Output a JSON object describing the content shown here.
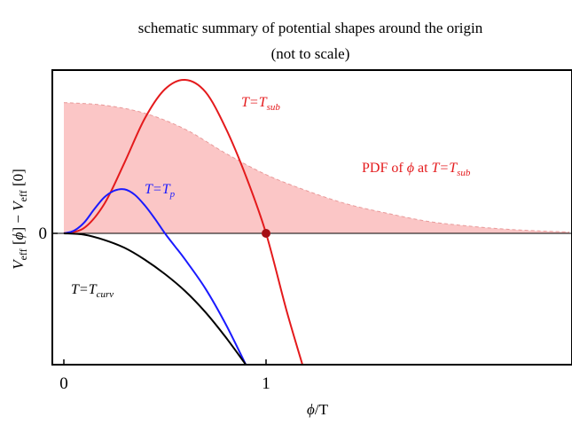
{
  "chart_data": {
    "type": "line",
    "title": "schematic summary of potential shapes around the origin",
    "subtitle": "(not to scale)",
    "xlabel": {
      "sym": "ϕ",
      "rest": "/T"
    },
    "ylabel": {
      "parts": [
        "V",
        "eff",
        " [",
        "ϕ",
        "]",
        " − ",
        "V",
        "eff",
        " [0]"
      ]
    },
    "xlim": [
      0,
      2.5
    ],
    "ylim": [
      -1.0,
      1.15
    ],
    "x_ticks": [
      {
        "value": 0,
        "label": "0"
      },
      {
        "value": 1,
        "label": "1"
      }
    ],
    "y_ticks": [
      {
        "value": 0,
        "label": "0"
      }
    ],
    "colors": {
      "sub": "#e41a1c",
      "p": "#1a1aff",
      "curv": "#000000",
      "pdf_fill": "#fbc6c6",
      "pdf_edge": "#e89a9a",
      "point": "#a50f15"
    },
    "series": [
      {
        "key": "sub",
        "label_main": "T=T",
        "label_sub": "sub",
        "x": [
          0.0,
          0.1,
          0.2,
          0.3,
          0.4,
          0.5,
          0.6,
          0.7,
          0.8,
          0.9,
          1.0,
          1.1,
          1.18
        ],
        "y": [
          0.0,
          0.04,
          0.22,
          0.53,
          0.86,
          1.08,
          1.15,
          1.06,
          0.79,
          0.43,
          0.0,
          -0.58,
          -1.0
        ]
      },
      {
        "key": "p",
        "label_main": "T=T",
        "label_sub": "p",
        "x": [
          0.0,
          0.05,
          0.1,
          0.15,
          0.2,
          0.25,
          0.3,
          0.35,
          0.4,
          0.45,
          0.5,
          0.55,
          0.6,
          0.7,
          0.8,
          0.9
        ],
        "y": [
          0.0,
          0.02,
          0.08,
          0.18,
          0.27,
          0.32,
          0.33,
          0.29,
          0.21,
          0.11,
          0.0,
          -0.1,
          -0.2,
          -0.42,
          -0.69,
          -1.0
        ]
      },
      {
        "key": "curv",
        "label_main": "T=T",
        "label_sub": "curv",
        "x": [
          0.0,
          0.1,
          0.2,
          0.3,
          0.4,
          0.5,
          0.6,
          0.7,
          0.8,
          0.9
        ],
        "y": [
          0.0,
          -0.01,
          -0.05,
          -0.11,
          -0.2,
          -0.31,
          -0.44,
          -0.6,
          -0.79,
          -1.0
        ]
      }
    ],
    "pdf": {
      "label_text": "PDF of ",
      "label_sym": "ϕ",
      "label_at": " at ",
      "label_main": "T=T",
      "label_sub": "sub",
      "x": [
        0.0,
        0.2,
        0.4,
        0.6,
        0.8,
        1.0,
        1.2,
        1.4,
        1.6,
        1.8,
        2.0,
        2.2,
        2.4,
        2.5
      ],
      "y": [
        0.98,
        0.96,
        0.9,
        0.78,
        0.6,
        0.44,
        0.32,
        0.22,
        0.15,
        0.09,
        0.055,
        0.03,
        0.015,
        0.01
      ]
    },
    "marker": {
      "x": 1.0,
      "y": 0.0
    }
  }
}
